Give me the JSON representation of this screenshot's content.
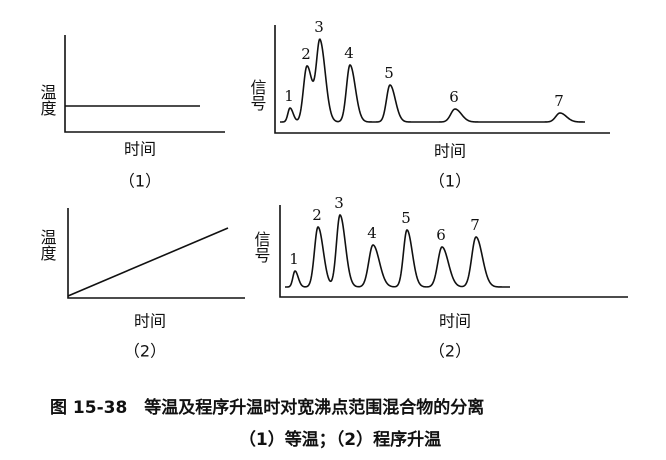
{
  "panels": [
    {
      "y_label": "温度",
      "x_label": "时间",
      "caption": "（1）"
    },
    {
      "y_label": "信号",
      "x_label": "时间",
      "caption": "（1）",
      "peaks": [
        "1",
        "2",
        "3",
        "4",
        "5",
        "6",
        "7"
      ]
    },
    {
      "y_label": "温度",
      "x_label": "时间",
      "caption": "（2）"
    },
    {
      "y_label": "信号",
      "x_label": "时间",
      "caption": "（2）",
      "peaks": [
        "1",
        "2",
        "3",
        "4",
        "5",
        "6",
        "7"
      ]
    }
  ],
  "figure_caption": {
    "title": "图 15-38　等温及程序升温时对宽沸点范围混合物的分离",
    "legend": "（1）等温；（2）程序升温"
  }
}
